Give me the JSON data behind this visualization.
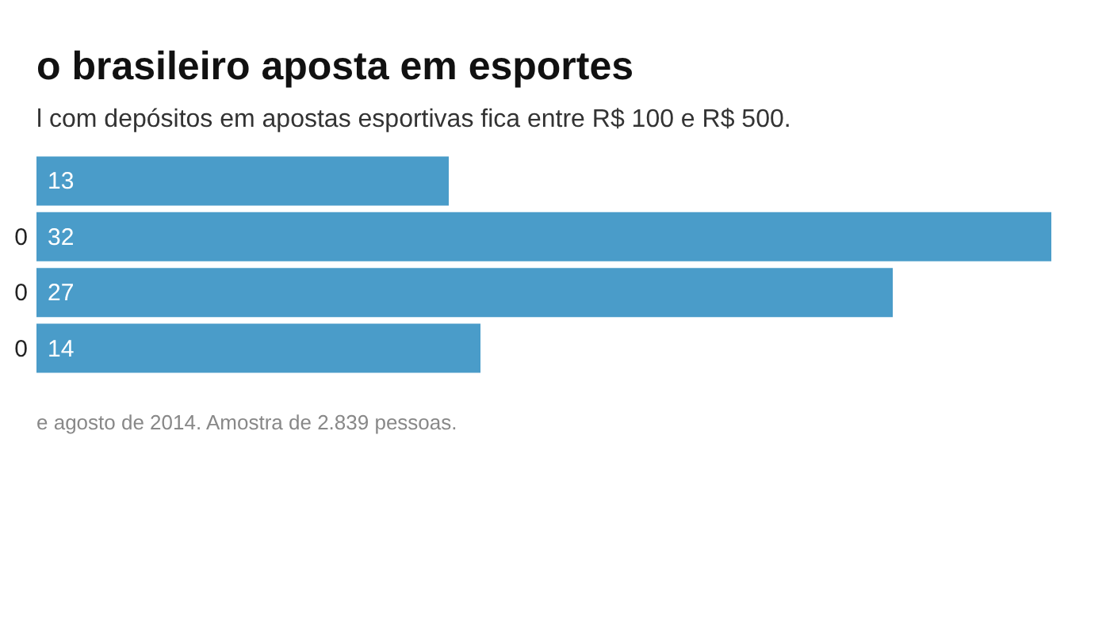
{
  "chart_data": {
    "type": "bar",
    "orientation": "horizontal",
    "title": "o brasileiro aposta em esportes",
    "subtitle": "l com depósitos em apostas esportivas fica entre R$ 100 e R$ 500.",
    "categories": [
      null,
      "0",
      "0",
      "0"
    ],
    "values": [
      13,
      32,
      27,
      14
    ],
    "color": "#4a9cc9",
    "data_labels": true,
    "tick_labels": "y",
    "annotations": [
      "e agosto de 2014. Amostra de 2.839 pessoas."
    ]
  }
}
